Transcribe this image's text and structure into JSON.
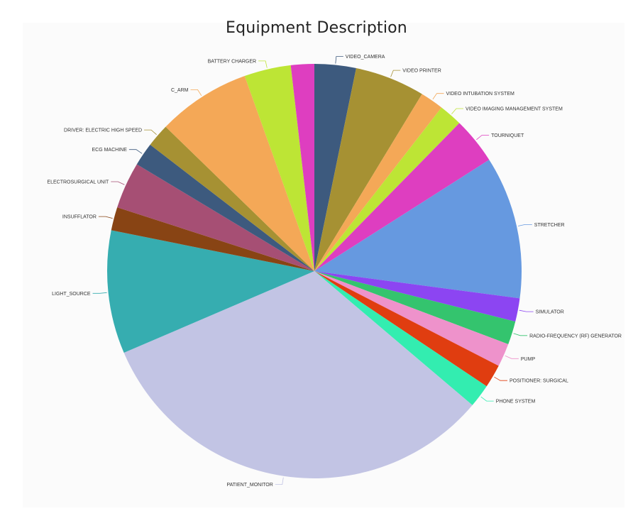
{
  "chart_data": {
    "type": "pie",
    "title": "Equipment Description",
    "slices": [
      {
        "label": "VIDEO_CAMERA",
        "value": 3.2,
        "color": "#3d5a7e"
      },
      {
        "label": "VIDEO PRINTER",
        "value": 5.4,
        "color": "#a69133"
      },
      {
        "label": "VIDEO INTUBATION SYSTEM",
        "value": 1.8,
        "color": "#f4a857"
      },
      {
        "label": "VIDEO IMAGING MANAGEMENT SYSTEM",
        "value": 1.8,
        "color": "#bde535"
      },
      {
        "label": "TOURNIQUET",
        "value": 3.6,
        "color": "#de3ec0"
      },
      {
        "label": "STRETCHER",
        "value": 11.0,
        "color": "#6699e0"
      },
      {
        "label": "SIMULATOR",
        "value": 1.8,
        "color": "#8c45f2"
      },
      {
        "label": "RADIO-FREQUENCY (RF) GENERATOR",
        "value": 1.8,
        "color": "#34c46e"
      },
      {
        "label": "PUMP",
        "value": 1.8,
        "color": "#ee92cb"
      },
      {
        "label": "POSITIONER: SURGICAL",
        "value": 1.8,
        "color": "#e03d10"
      },
      {
        "label": "PHONE SYSTEM",
        "value": 1.8,
        "color": "#33edb0"
      },
      {
        "label": "PATIENT_MONITOR",
        "value": 32.0,
        "color": "#c2c4e4"
      },
      {
        "label": "LIGHT_SOURCE",
        "value": 9.5,
        "color": "#36adb0"
      },
      {
        "label": "INSUFFLATOR",
        "value": 1.8,
        "color": "#884414"
      },
      {
        "label": "ELECTROSURGICAL UNIT",
        "value": 3.6,
        "color": "#a64f74"
      },
      {
        "label": "ECG MACHINE",
        "value": 1.8,
        "color": "#3d5a7e"
      },
      {
        "label": "DRIVER: ELECTRIC HIGH SPEED",
        "value": 1.8,
        "color": "#a69133"
      },
      {
        "label": "C_ARM",
        "value": 7.2,
        "color": "#f4a857"
      },
      {
        "label": "BATTERY CHARGER",
        "value": 3.6,
        "color": "#bde535"
      },
      {
        "label": "",
        "value": 1.8,
        "color": "#de3ec0"
      }
    ],
    "legend": "none",
    "labels": "outside with leader lines"
  }
}
